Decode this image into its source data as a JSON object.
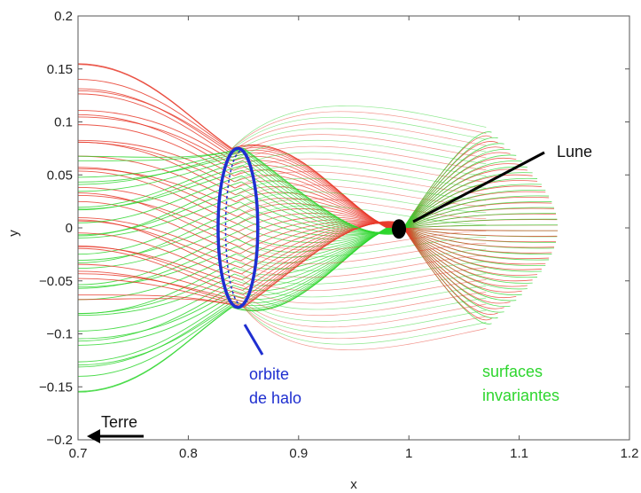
{
  "chart_data": {
    "type": "line",
    "title": "",
    "xlabel": "x",
    "ylabel": "y",
    "xlim": [
      0.7,
      1.2
    ],
    "ylim": [
      -0.2,
      0.2
    ],
    "x_ticks": [
      "0.7",
      "0.8",
      "0.9",
      "1",
      "1.1",
      "1.2"
    ],
    "y_ticks": [
      "0.2",
      "0.15",
      "0.1",
      "0.05",
      "0",
      "−0.05",
      "−0.1",
      "−0.15",
      "−0.2"
    ],
    "grid": false,
    "legend": "none",
    "colors": {
      "unstable": "#e8392a",
      "stable": "#2ed62e",
      "halo": "#1f2fd0",
      "moon": "#000000"
    },
    "halo_orbit": {
      "center": [
        0.845,
        0.0
      ],
      "x_semi_axis": 0.009,
      "y_semi_axis": 0.075
    },
    "moon": {
      "x": 0.991,
      "y": -0.001
    },
    "annotations": {
      "moon_label": "Lune",
      "earth_label": "Terre",
      "halo_label_line1": "orbite",
      "halo_label_line2": "de halo",
      "surfaces_label_line1": "surfaces",
      "surfaces_label_line2": "invariantes"
    }
  }
}
